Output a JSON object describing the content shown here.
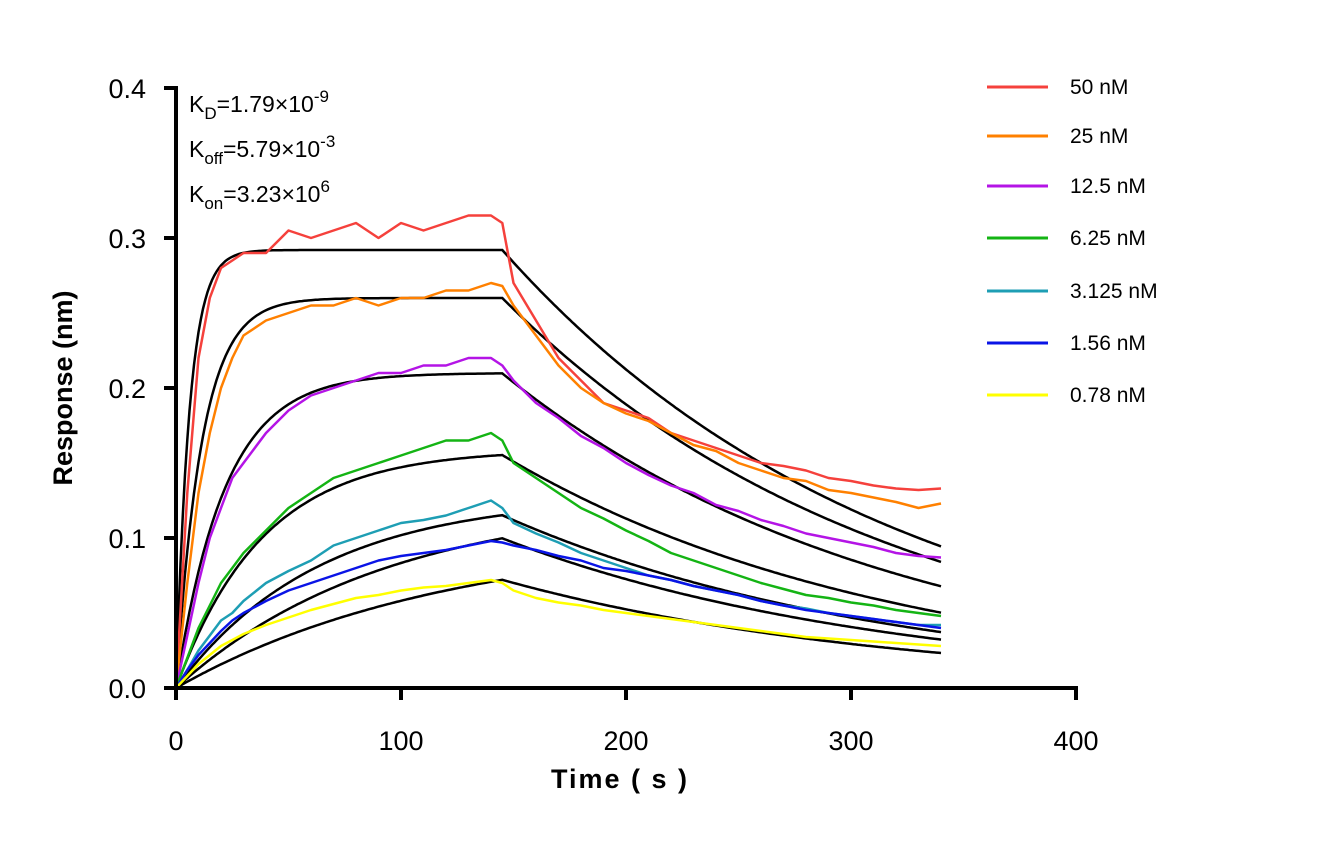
{
  "chart_data": {
    "type": "line",
    "xlabel": "Time ( s )",
    "ylabel": "Response (nm)",
    "xlim": [
      0,
      400
    ],
    "ylim": [
      0,
      0.4
    ],
    "xticks": [
      "0",
      "100",
      "200",
      "300",
      "400"
    ],
    "yticks": [
      "0.0",
      "0.1",
      "0.2",
      "0.3",
      "0.4"
    ],
    "grid": false,
    "legend_position": "right",
    "annotations": [
      {
        "sym": "K",
        "sub": "D",
        "eq": "=1.79×10",
        "exp": "-9"
      },
      {
        "sym": "K",
        "sub": "off",
        "eq": "=5.79×10",
        "exp": "-3"
      },
      {
        "sym": "K",
        "sub": "on",
        "eq": "=3.23×10",
        "exp": "6"
      }
    ],
    "kinetics": {
      "KD": 1.79e-09,
      "koff": 0.00579,
      "kon": 3230000.0
    },
    "association_end_s": 145,
    "fit_color": "#000000",
    "fit_equilibrium_response": [
      0.292,
      0.26,
      0.21,
      0.159,
      0.128,
      0.126,
      0.103
    ],
    "x": [
      0,
      5,
      10,
      15,
      20,
      25,
      30,
      40,
      50,
      60,
      70,
      80,
      90,
      100,
      110,
      120,
      130,
      140,
      145,
      150,
      160,
      170,
      180,
      190,
      200,
      210,
      220,
      230,
      240,
      250,
      260,
      270,
      280,
      290,
      300,
      310,
      320,
      330,
      340
    ],
    "series": [
      {
        "name": "50 nM",
        "conc_nM": 50,
        "color": "#f5413c",
        "values": [
          0,
          0.13,
          0.22,
          0.26,
          0.28,
          0.285,
          0.29,
          0.29,
          0.305,
          0.3,
          0.305,
          0.31,
          0.3,
          0.31,
          0.305,
          0.31,
          0.315,
          0.315,
          0.31,
          0.27,
          0.245,
          0.22,
          0.205,
          0.19,
          0.185,
          0.18,
          0.17,
          0.165,
          0.16,
          0.155,
          0.15,
          0.148,
          0.145,
          0.14,
          0.138,
          0.135,
          0.133,
          0.132,
          0.133
        ]
      },
      {
        "name": "25 nM",
        "conc_nM": 25,
        "color": "#ff8000",
        "values": [
          0,
          0.07,
          0.13,
          0.17,
          0.2,
          0.22,
          0.235,
          0.245,
          0.25,
          0.255,
          0.255,
          0.26,
          0.255,
          0.26,
          0.26,
          0.265,
          0.265,
          0.27,
          0.268,
          0.255,
          0.235,
          0.215,
          0.2,
          0.19,
          0.183,
          0.178,
          0.17,
          0.162,
          0.158,
          0.15,
          0.145,
          0.14,
          0.138,
          0.132,
          0.13,
          0.127,
          0.124,
          0.12,
          0.123
        ]
      },
      {
        "name": "12.5 nM",
        "conc_nM": 12.5,
        "color": "#b414e6",
        "values": [
          0,
          0.035,
          0.07,
          0.1,
          0.12,
          0.14,
          0.15,
          0.17,
          0.185,
          0.195,
          0.2,
          0.205,
          0.21,
          0.21,
          0.215,
          0.215,
          0.22,
          0.22,
          0.215,
          0.205,
          0.19,
          0.18,
          0.168,
          0.16,
          0.15,
          0.142,
          0.135,
          0.13,
          0.122,
          0.118,
          0.112,
          0.108,
          0.103,
          0.1,
          0.097,
          0.094,
          0.09,
          0.088,
          0.087
        ]
      },
      {
        "name": "6.25 nM",
        "conc_nM": 6.25,
        "color": "#14b414",
        "values": [
          0,
          0.02,
          0.04,
          0.055,
          0.07,
          0.08,
          0.09,
          0.105,
          0.12,
          0.13,
          0.14,
          0.145,
          0.15,
          0.155,
          0.16,
          0.165,
          0.165,
          0.17,
          0.165,
          0.15,
          0.14,
          0.13,
          0.12,
          0.113,
          0.105,
          0.098,
          0.09,
          0.085,
          0.08,
          0.075,
          0.07,
          0.066,
          0.062,
          0.06,
          0.057,
          0.055,
          0.052,
          0.05,
          0.048
        ]
      },
      {
        "name": "3.125 nM",
        "conc_nM": 3.125,
        "color": "#1e9eb4",
        "values": [
          0,
          0.012,
          0.025,
          0.035,
          0.045,
          0.05,
          0.058,
          0.07,
          0.078,
          0.085,
          0.095,
          0.1,
          0.105,
          0.11,
          0.112,
          0.115,
          0.12,
          0.125,
          0.12,
          0.11,
          0.103,
          0.097,
          0.09,
          0.085,
          0.08,
          0.075,
          0.072,
          0.068,
          0.065,
          0.062,
          0.058,
          0.055,
          0.053,
          0.05,
          0.048,
          0.046,
          0.044,
          0.042,
          0.042
        ]
      },
      {
        "name": "1.56 nM",
        "conc_nM": 1.56,
        "color": "#0a14e6",
        "values": [
          0,
          0.012,
          0.022,
          0.03,
          0.038,
          0.045,
          0.05,
          0.058,
          0.065,
          0.07,
          0.075,
          0.08,
          0.085,
          0.088,
          0.09,
          0.092,
          0.095,
          0.098,
          0.097,
          0.095,
          0.092,
          0.088,
          0.085,
          0.08,
          0.078,
          0.075,
          0.072,
          0.068,
          0.065,
          0.062,
          0.058,
          0.055,
          0.052,
          0.05,
          0.048,
          0.046,
          0.044,
          0.042,
          0.04
        ]
      },
      {
        "name": "0.78 nM",
        "conc_nM": 0.78,
        "color": "#ffff00",
        "values": [
          0,
          0.008,
          0.016,
          0.022,
          0.028,
          0.032,
          0.036,
          0.042,
          0.047,
          0.052,
          0.056,
          0.06,
          0.062,
          0.065,
          0.067,
          0.068,
          0.07,
          0.072,
          0.07,
          0.065,
          0.06,
          0.057,
          0.055,
          0.052,
          0.05,
          0.048,
          0.046,
          0.044,
          0.042,
          0.04,
          0.038,
          0.036,
          0.034,
          0.033,
          0.032,
          0.031,
          0.03,
          0.029,
          0.028
        ]
      }
    ]
  }
}
